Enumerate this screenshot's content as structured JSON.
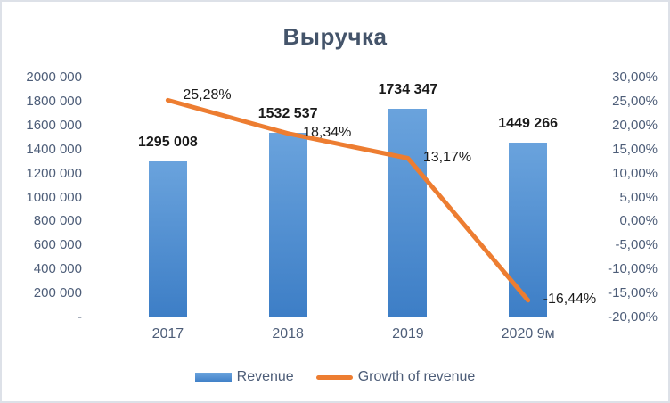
{
  "chart_data": {
    "type": "combo-bar-line",
    "title": "Выручка",
    "categories": [
      "2017",
      "2018",
      "2019",
      "2020 9м"
    ],
    "series": [
      {
        "name": "Revenue",
        "type": "bar",
        "axis": "left",
        "values": [
          1295008,
          1532537,
          1734347,
          1449266
        ],
        "value_labels": [
          "1295 008",
          "1532 537",
          "1734 347",
          "1449 266"
        ],
        "color_top": "#6aa3dd",
        "color_bottom": "#3d7ec6"
      },
      {
        "name": "Growth of revenue",
        "type": "line",
        "axis": "right",
        "values": [
          25.28,
          18.34,
          13.17,
          -16.44
        ],
        "value_labels": [
          "25,28%",
          "18,34%",
          "13,17%",
          "-16,44%"
        ],
        "color": "#ED7D31"
      }
    ],
    "left_axis": {
      "min": 0,
      "max": 2000000,
      "step": 200000,
      "ticks_top_to_bottom": [
        "2000 000",
        "1800 000",
        "1600 000",
        "1400 000",
        "1200 000",
        "1000 000",
        "800 000",
        "600 000",
        "400 000",
        "200 000",
        "-"
      ]
    },
    "right_axis": {
      "min": -20,
      "max": 30,
      "step": 5,
      "ticks_top_to_bottom": [
        "30,00%",
        "25,00%",
        "20,00%",
        "15,00%",
        "10,00%",
        "5,00%",
        "0,00%",
        "-5,00%",
        "-10,00%",
        "-15,00%",
        "-20,00%"
      ]
    },
    "legend_position": "bottom",
    "gridlines": false,
    "colors": {
      "title_text": "#44546A",
      "axis_text": "#4d5d78",
      "data_label_text": "#1a1a1a",
      "bar_gradient_top": "#6aa3dd",
      "bar_gradient_bottom": "#3d7ec6",
      "line": "#ED7D31",
      "axis_line": "#d9d9d9",
      "frame_border": "#dde1e8"
    }
  }
}
